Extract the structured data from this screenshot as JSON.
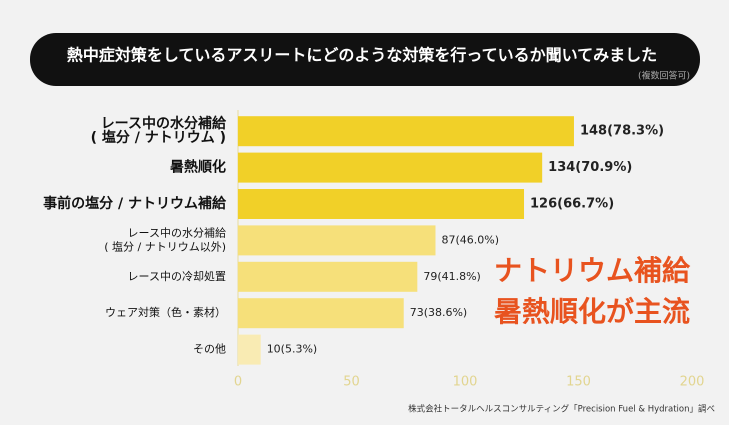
{
  "chart_data": {
    "type": "bar",
    "orientation": "horizontal",
    "title": "熱中症対策をしているアスリートにどのような対策を行っているか聞いてみました",
    "subtitle": "(複数回答可)",
    "categories": [
      "レース中の水分補給\n( 塩分 / ナトリウム )",
      "暑熱順化",
      "事前の塩分 / ナトリウム補給",
      "レース中の水分補給\n( 塩分 / ナトリウム以外)",
      "レース中の冷却処置",
      "ウェア対策（色・素材）",
      "その他"
    ],
    "values": [
      148,
      134,
      126,
      87,
      79,
      73,
      10
    ],
    "value_labels": [
      "148(78.3%)",
      "134(70.9%)",
      "126(66.7%)",
      "87(46.0%)",
      "79(41.8%)",
      "73(38.6%)",
      "10(5.3%)"
    ],
    "colors": [
      "#f1d028",
      "#f1d028",
      "#f1d028",
      "#f6e07a",
      "#f6e07a",
      "#f6e07a",
      "#f9ebb3"
    ],
    "bold": [
      true,
      true,
      true,
      false,
      false,
      false,
      false
    ],
    "xlim": [
      0,
      200
    ],
    "xticks": [
      0,
      50,
      100,
      150,
      200
    ],
    "grid": false,
    "annotations": [
      "ナトリウム補給",
      "暑熱順化が主流"
    ],
    "source": "株式会社トータルヘルスコンサルティング「Precision Fuel & Hydration」調べ"
  }
}
